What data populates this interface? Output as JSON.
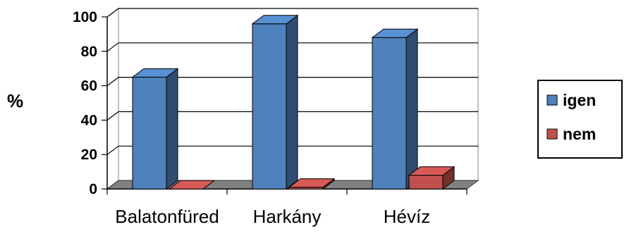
{
  "chart_data": {
    "type": "bar",
    "title": "",
    "xlabel": "",
    "ylabel": "%",
    "ylim": [
      0,
      100
    ],
    "yticks": [
      0,
      20,
      40,
      60,
      80,
      100
    ],
    "grid": true,
    "legend_position": "right",
    "categories": [
      "Balatonfüred",
      "Harkány",
      "Hévíz"
    ],
    "series": [
      {
        "name": "igen",
        "color": "#4f81bd",
        "values": [
          65,
          96,
          88
        ]
      },
      {
        "name": "nem",
        "color": "#c0504d",
        "values": [
          0,
          1,
          8
        ]
      }
    ]
  }
}
